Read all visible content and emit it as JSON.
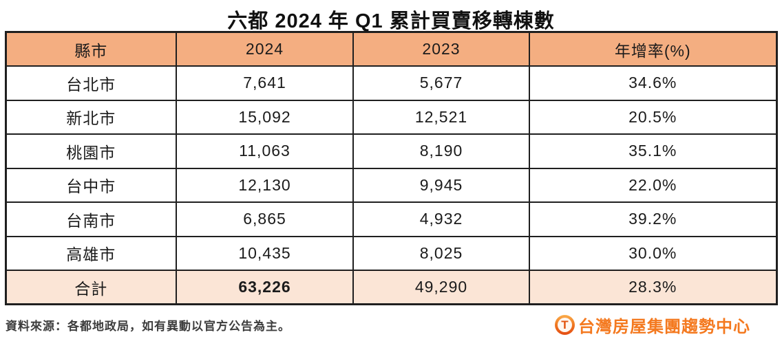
{
  "title": "六都 2024 年 Q1 累計買賣移轉棟數",
  "table": {
    "headers": {
      "city": "縣市",
      "y2024": "2024",
      "y2023": "2023",
      "yoy": "年增率(%)"
    },
    "rows": [
      {
        "city": "台北市",
        "y2024": "7,641",
        "y2023": "5,677",
        "yoy": "34.6%"
      },
      {
        "city": "新北市",
        "y2024": "15,092",
        "y2023": "12,521",
        "yoy": "20.5%"
      },
      {
        "city": "桃園市",
        "y2024": "11,063",
        "y2023": "8,190",
        "yoy": "35.1%"
      },
      {
        "city": "台中市",
        "y2024": "12,130",
        "y2023": "9,945",
        "yoy": "22.0%"
      },
      {
        "city": "台南市",
        "y2024": "6,865",
        "y2023": "4,932",
        "yoy": "39.2%"
      },
      {
        "city": "高雄市",
        "y2024": "10,435",
        "y2023": "8,025",
        "yoy": "30.0%"
      }
    ],
    "total": {
      "city": "合計",
      "y2024": "63,226",
      "y2023": "49,290",
      "yoy": "28.3%"
    }
  },
  "footer": {
    "source_note": "資料來源：各都地政局，如有異動以官方公告為主。",
    "brand_icon_glyph": "T",
    "brand_text": "台灣房屋集團趨勢中心"
  },
  "colors": {
    "header_bg": "#F4AE81",
    "total_row_bg": "#FBE5D6",
    "table_border": "#1f1f1f",
    "brand_orange": "#F4791F"
  },
  "chart_data": {
    "type": "table",
    "title": "六都 2024 年 Q1 累計買賣移轉棟數",
    "columns": [
      "縣市",
      "2024",
      "2023",
      "年增率(%)"
    ],
    "rows": [
      [
        "台北市",
        7641,
        5677,
        "34.6%"
      ],
      [
        "新北市",
        15092,
        12521,
        "20.5%"
      ],
      [
        "桃園市",
        11063,
        8190,
        "35.1%"
      ],
      [
        "台中市",
        12130,
        9945,
        "22.0%"
      ],
      [
        "台南市",
        6865,
        4932,
        "39.2%"
      ],
      [
        "高雄市",
        10435,
        8025,
        "30.0%"
      ],
      [
        "合計",
        63226,
        49290,
        "28.3%"
      ]
    ],
    "notes": "資料來源：各都地政局，如有異動以官方公告為主。"
  }
}
